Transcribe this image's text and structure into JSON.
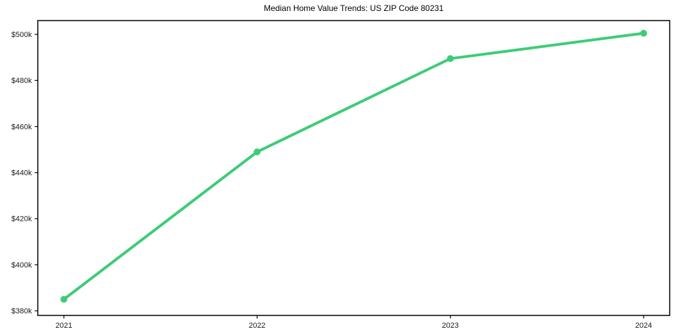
{
  "figure": {
    "background_color": "#ffffff"
  },
  "chart_data": {
    "type": "line",
    "title": "Median Home Value Trends: US ZIP Code 80231",
    "xlabel": "",
    "ylabel": "",
    "x": [
      2021,
      2022,
      2023,
      2024
    ],
    "series": [
      {
        "name": "Median Home Value",
        "values": [
          385000,
          449000,
          489500,
          500500
        ],
        "color": "#3ecb78",
        "marker": "circle",
        "line_width": 4,
        "marker_radius": 5
      }
    ],
    "xticks": {
      "values": [
        2021,
        2022,
        2023,
        2024
      ],
      "labels": [
        "2021",
        "2022",
        "2023",
        "2024"
      ]
    },
    "yticks": {
      "values": [
        380000,
        400000,
        420000,
        440000,
        460000,
        480000,
        500000
      ],
      "labels": [
        "$380k",
        "$400k",
        "$420k",
        "$440k",
        "$460k",
        "$480k",
        "$500k"
      ]
    },
    "xlim": [
      2020.865,
      2024.135
    ],
    "ylim": [
      378000,
      506000
    ],
    "grid": false,
    "legend": "none",
    "axis_color": "#000000",
    "spine_width": 1.5,
    "tick_length": 4.5,
    "tick_label_color": "#1a1a1a",
    "title_color": "#000000"
  }
}
